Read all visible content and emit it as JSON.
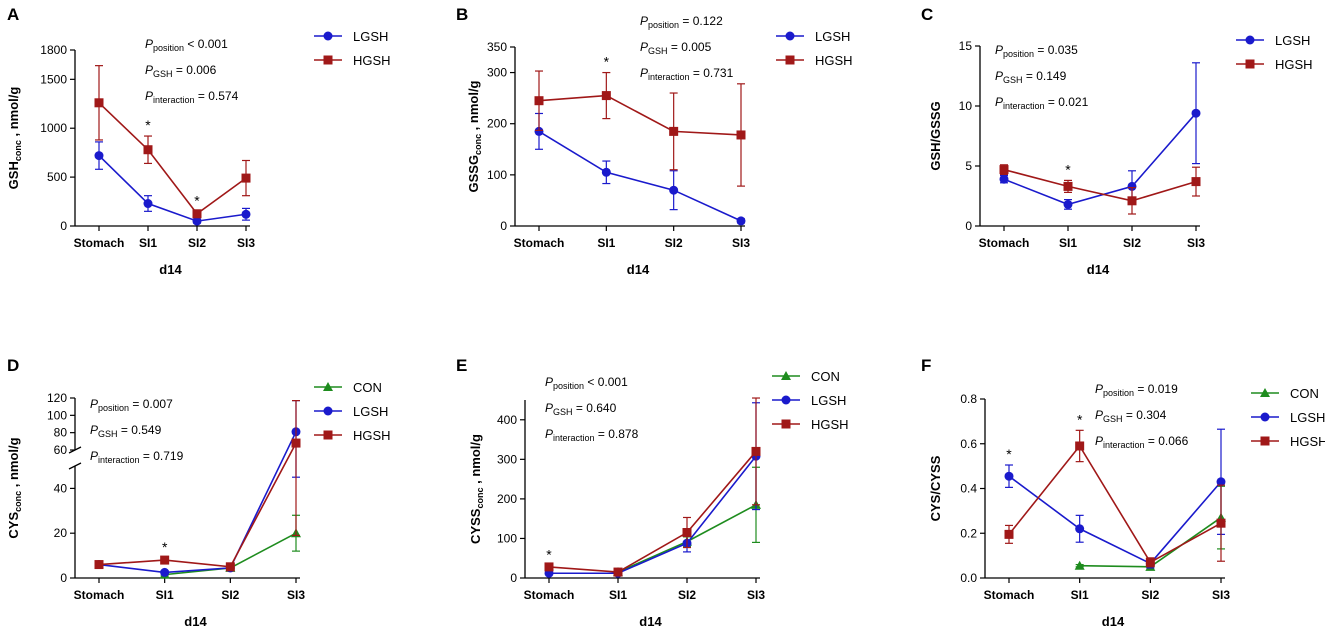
{
  "colors": {
    "CON": "#1e8c1e",
    "LGSH": "#1a1acc",
    "HGSH": "#a01818"
  },
  "chart_data": [
    {
      "id": "A",
      "type": "line",
      "letter": "A",
      "xlabel": "d14",
      "ylabel": "GSH",
      "ylabel_sub": "conc",
      "ylabel_suffix": " , nmol/g",
      "categories": [
        "Stomach",
        "SI1",
        "SI2",
        "SI3"
      ],
      "ylim": [
        0,
        1800
      ],
      "yticks": [
        0,
        500,
        1000,
        1500,
        1800
      ],
      "series": [
        {
          "name": "LGSH",
          "values": [
            720,
            230,
            50,
            120
          ],
          "err": [
            140,
            80,
            20,
            60
          ]
        },
        {
          "name": "HGSH",
          "values": [
            1260,
            780,
            125,
            490
          ],
          "err": [
            380,
            140,
            25,
            180
          ]
        }
      ],
      "stars": [
        1,
        2
      ],
      "stats": [
        {
          "sub": "position",
          "text": " < 0.001"
        },
        {
          "sub": "GSH",
          "text": " = 0.006"
        },
        {
          "sub": "interaction",
          "text": " = 0.574"
        }
      ]
    },
    {
      "id": "B",
      "type": "line",
      "letter": "B",
      "xlabel": "d14",
      "ylabel": "GSSG",
      "ylabel_sub": "conc",
      "ylabel_suffix": " , nmol/g",
      "categories": [
        "Stomach",
        "SI1",
        "SI2",
        "SI3"
      ],
      "ylim": [
        0,
        350
      ],
      "yticks": [
        0,
        100,
        200,
        300,
        350
      ],
      "series": [
        {
          "name": "LGSH",
          "values": [
            185,
            105,
            70,
            10
          ],
          "err": [
            35,
            22,
            38,
            4
          ]
        },
        {
          "name": "HGSH",
          "values": [
            245,
            255,
            185,
            178
          ],
          "err": [
            58,
            45,
            75,
            100
          ]
        }
      ],
      "stars": [
        1
      ],
      "stats": [
        {
          "sub": "position",
          "text": " = 0.122"
        },
        {
          "sub": "GSH",
          "text": " = 0.005"
        },
        {
          "sub": "interaction",
          "text": " = 0.731"
        }
      ]
    },
    {
      "id": "C",
      "type": "line",
      "letter": "C",
      "xlabel": "d14",
      "ylabel": "GSH/GSSG",
      "ylabel_sub": "",
      "ylabel_suffix": "",
      "categories": [
        "Stomach",
        "SI1",
        "SI2",
        "SI3"
      ],
      "ylim": [
        0,
        15
      ],
      "yticks": [
        0,
        5,
        10,
        15
      ],
      "series": [
        {
          "name": "LGSH",
          "values": [
            3.9,
            1.8,
            3.3,
            9.4
          ],
          "err": [
            0.3,
            0.4,
            1.3,
            4.2
          ]
        },
        {
          "name": "HGSH",
          "values": [
            4.7,
            3.3,
            2.1,
            3.7
          ],
          "err": [
            0.4,
            0.5,
            1.1,
            1.2
          ]
        }
      ],
      "stars": [
        1
      ],
      "stats": [
        {
          "sub": "position",
          "text": " = 0.035"
        },
        {
          "sub": "GSH",
          "text": " = 0.149"
        },
        {
          "sub": "interaction",
          "text": " = 0.021"
        }
      ]
    },
    {
      "id": "D",
      "type": "line",
      "letter": "D",
      "xlabel": "d14",
      "ylabel": "CYS",
      "ylabel_sub": "conc",
      "ylabel_suffix": " , nmol/g",
      "categories": [
        "Stomach",
        "SI1",
        "SI2",
        "SI3"
      ],
      "broken_axis": true,
      "ylim_lower": [
        0,
        50
      ],
      "yticks_lower": [
        0,
        20,
        40
      ],
      "ylim_upper": [
        60,
        120
      ],
      "yticks_upper": [
        60,
        80,
        100,
        120
      ],
      "series": [
        {
          "name": "CON",
          "values": [
            null,
            1.5,
            4.5,
            20
          ],
          "err": [
            0,
            0.5,
            1,
            8
          ]
        },
        {
          "name": "LGSH",
          "values": [
            6,
            2.5,
            4.5,
            81
          ],
          "err": [
            1,
            0.8,
            1,
            36
          ]
        },
        {
          "name": "HGSH",
          "values": [
            6,
            8,
            5,
            68
          ],
          "err": [
            1,
            1,
            1,
            49
          ]
        }
      ],
      "stars": [
        1
      ],
      "stats": [
        {
          "sub": "position",
          "text": " = 0.007"
        },
        {
          "sub": "GSH",
          "text": " = 0.549"
        },
        {
          "sub": "interaction",
          "text": " = 0.719"
        }
      ]
    },
    {
      "id": "E",
      "type": "line",
      "letter": "E",
      "xlabel": "d14",
      "ylabel": "CYSS",
      "ylabel_sub": "conc",
      "ylabel_suffix": " , nmol/g",
      "categories": [
        "Stomach",
        "SI1",
        "SI2",
        "SI3"
      ],
      "ylim": [
        0,
        450
      ],
      "yticks": [
        0,
        100,
        200,
        300,
        400
      ],
      "series": [
        {
          "name": "CON",
          "values": [
            null,
            15,
            92,
            185
          ],
          "err": [
            0,
            4,
            12,
            95
          ]
        },
        {
          "name": "LGSH",
          "values": [
            12,
            12,
            88,
            308
          ],
          "err": [
            3,
            3,
            22,
            135
          ]
        },
        {
          "name": "HGSH",
          "values": [
            28,
            15,
            115,
            320
          ],
          "err": [
            4,
            3,
            38,
            135
          ]
        }
      ],
      "stars": [
        0
      ],
      "stats": [
        {
          "sub": "position",
          "text": " < 0.001"
        },
        {
          "sub": "GSH",
          "text": " = 0.640"
        },
        {
          "sub": "interaction",
          "text": " = 0.878"
        }
      ]
    },
    {
      "id": "F",
      "type": "line",
      "letter": "F",
      "xlabel": "d14",
      "ylabel": "CYS/CYSS",
      "ylabel_sub": "",
      "ylabel_suffix": "",
      "categories": [
        "Stomach",
        "SI1",
        "SI2",
        "SI3"
      ],
      "ylim": [
        0,
        0.8
      ],
      "yticks": [
        0.0,
        0.2,
        0.4,
        0.6,
        0.8
      ],
      "tick_decimals": 1,
      "series": [
        {
          "name": "CON",
          "values": [
            null,
            0.055,
            0.05,
            0.27
          ],
          "err": [
            0,
            0.005,
            0.005,
            0.14
          ]
        },
        {
          "name": "LGSH",
          "values": [
            0.455,
            0.22,
            0.065,
            0.43
          ],
          "err": [
            0.05,
            0.06,
            0.02,
            0.235
          ]
        },
        {
          "name": "HGSH",
          "values": [
            0.195,
            0.59,
            0.07,
            0.245
          ],
          "err": [
            0.04,
            0.07,
            0.02,
            0.17
          ]
        }
      ],
      "stars": [
        0,
        1
      ],
      "stats": [
        {
          "sub": "position",
          "text": " = 0.019"
        },
        {
          "sub": "GSH",
          "text": " = 0.304"
        },
        {
          "sub": "interaction",
          "text": " = 0.066"
        }
      ]
    }
  ]
}
